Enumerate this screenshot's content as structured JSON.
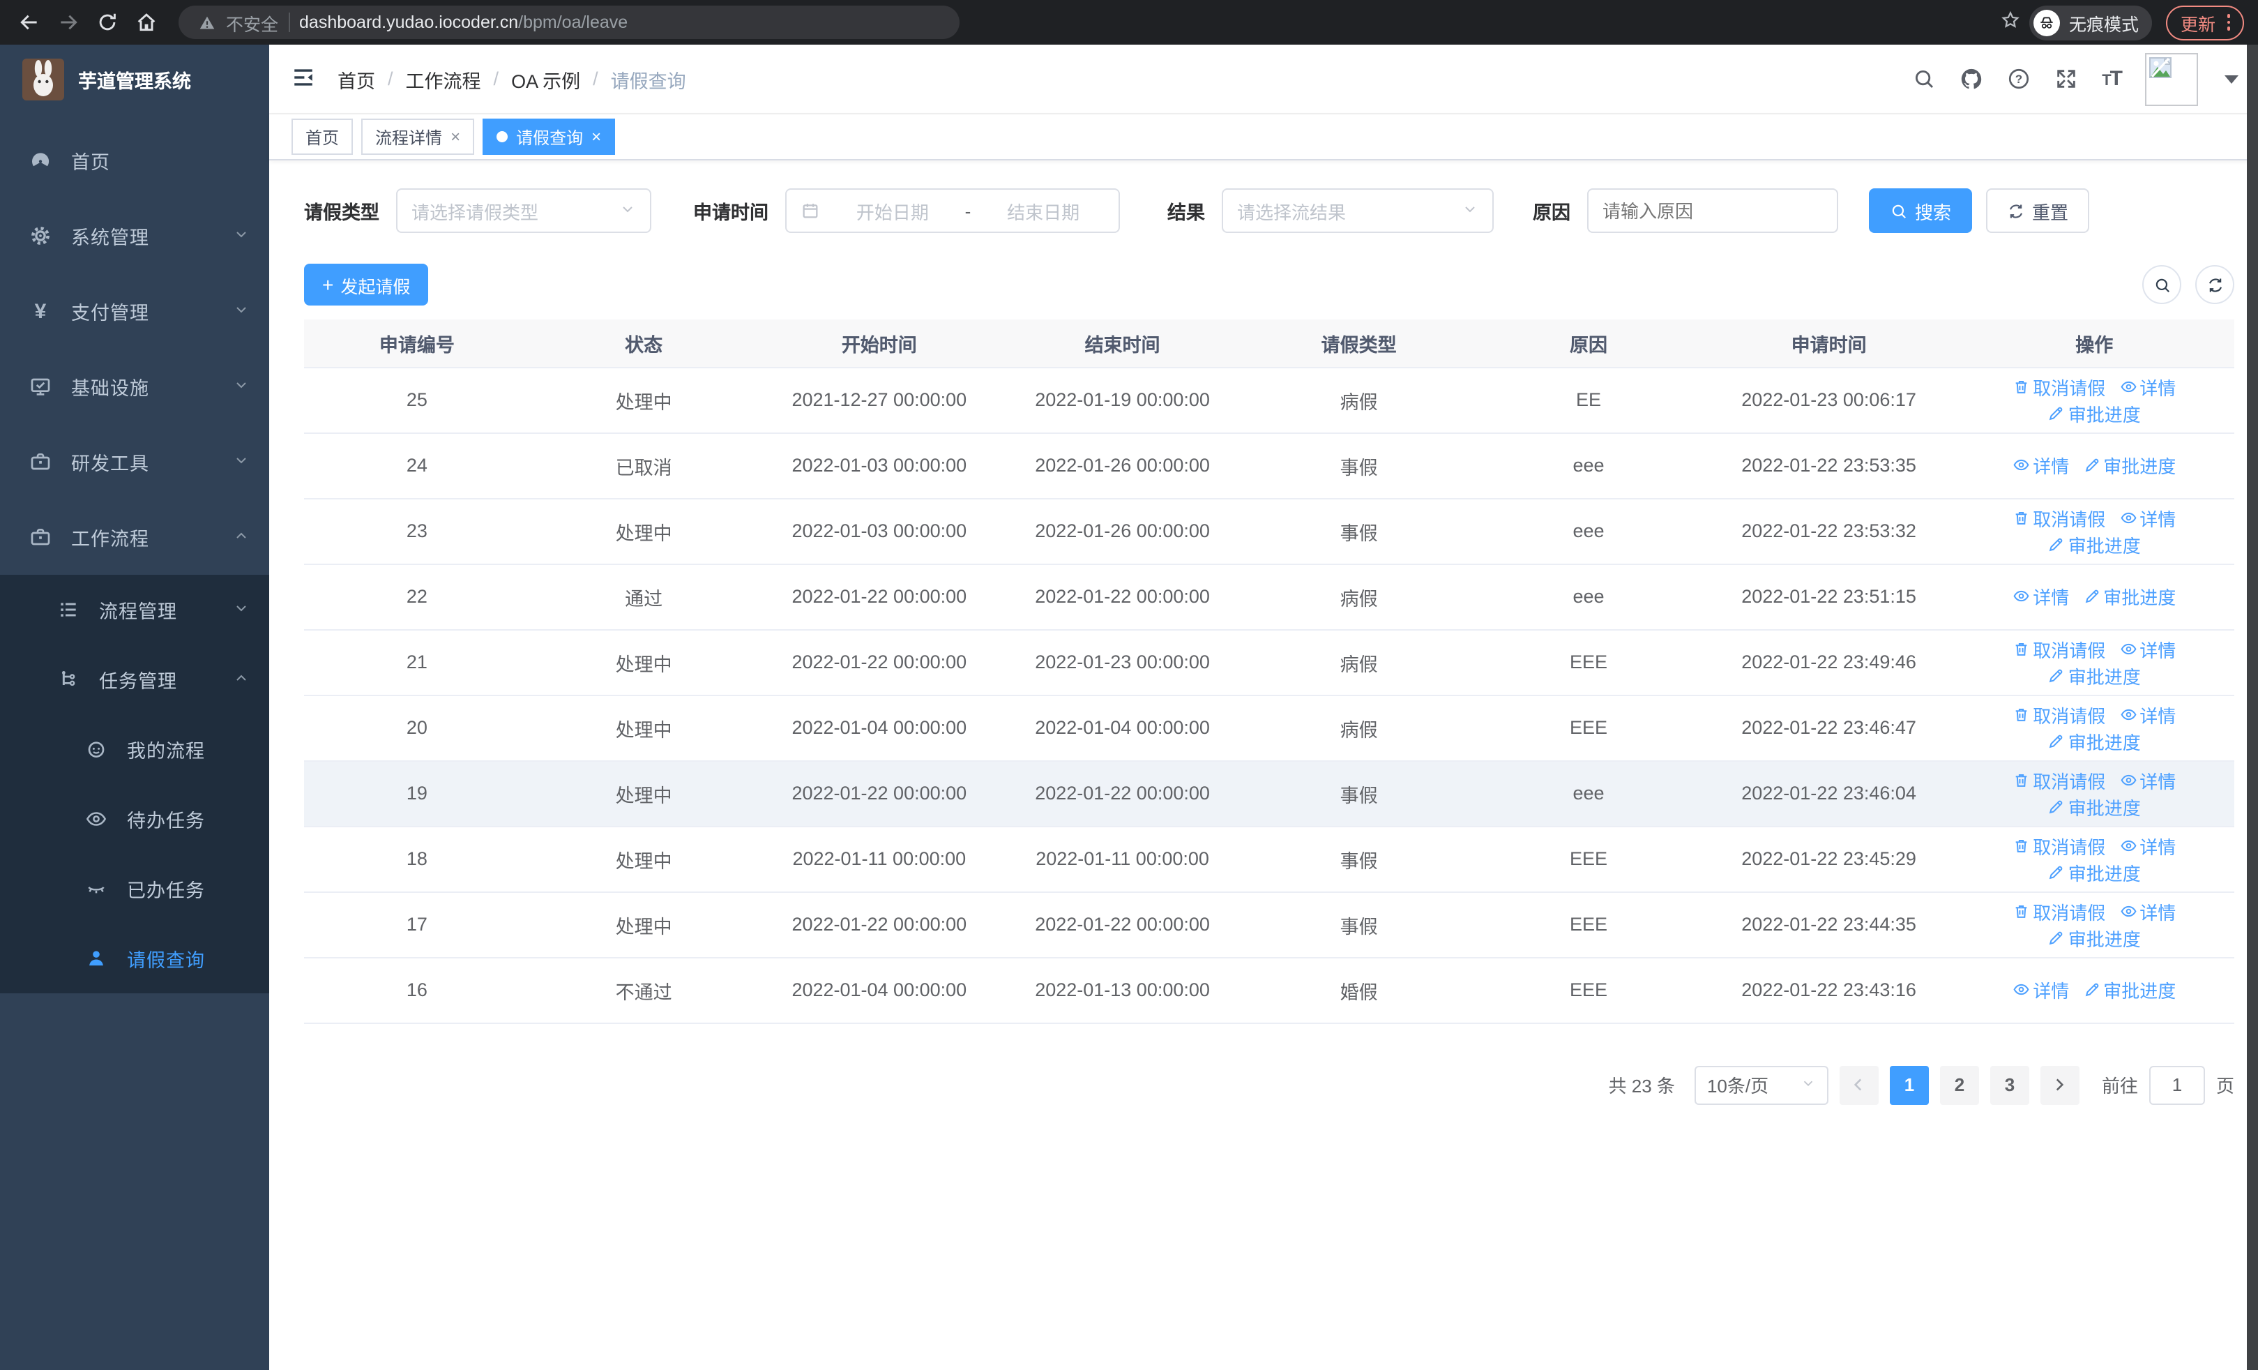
{
  "browser": {
    "security_label": "不安全",
    "url_host": "dashboard.yudao.iocoder.cn",
    "url_path": "/bpm/oa/leave",
    "incognito_label": "无痕模式",
    "update_label": "更新"
  },
  "sidebar": {
    "logo_title": "芋道管理系统",
    "items": [
      {
        "name": "home",
        "label": "首页",
        "icon": "gauge",
        "level": 0
      },
      {
        "name": "system-management",
        "label": "系统管理",
        "icon": "gear",
        "level": 0,
        "chevron": "down"
      },
      {
        "name": "payment-management",
        "label": "支付管理",
        "icon": "yen",
        "level": 0,
        "chevron": "down"
      },
      {
        "name": "infrastructure",
        "label": "基础设施",
        "icon": "monitor",
        "level": 0,
        "chevron": "down"
      },
      {
        "name": "dev-tools",
        "label": "研发工具",
        "icon": "toolbox",
        "level": 0,
        "chevron": "down"
      },
      {
        "name": "workflow",
        "label": "工作流程",
        "icon": "toolbox",
        "level": 0,
        "chevron": "up"
      },
      {
        "name": "process-management",
        "label": "流程管理",
        "icon": "list",
        "level": 1,
        "chevron": "down"
      },
      {
        "name": "task-management",
        "label": "任务管理",
        "icon": "flow",
        "level": 1,
        "chevron": "up"
      },
      {
        "name": "my-process",
        "label": "我的流程",
        "icon": "face",
        "level": 2
      },
      {
        "name": "todo-tasks",
        "label": "待办任务",
        "icon": "eye",
        "level": 2
      },
      {
        "name": "done-tasks",
        "label": "已办任务",
        "icon": "eye-off",
        "level": 2
      },
      {
        "name": "leave-query",
        "label": "请假查询",
        "icon": "person",
        "level": 2,
        "active": true
      }
    ]
  },
  "navbar": {
    "breadcrumb": [
      "首页",
      "工作流程",
      "OA 示例",
      "请假查询"
    ]
  },
  "tabs": [
    {
      "name": "home",
      "label": "首页"
    },
    {
      "name": "process-detail",
      "label": "流程详情",
      "closable": true
    },
    {
      "name": "leave-query",
      "label": "请假查询",
      "closable": true,
      "active": true
    }
  ],
  "filters": {
    "type_label": "请假类型",
    "type_placeholder": "请选择请假类型",
    "time_label": "申请时间",
    "start_placeholder": "开始日期",
    "range_separator": "-",
    "end_placeholder": "结束日期",
    "result_label": "结果",
    "result_placeholder": "请选择流结果",
    "reason_label": "原因",
    "reason_placeholder": "请输入原因",
    "search_label": "搜索",
    "reset_label": "重置"
  },
  "toolbar": {
    "create_label": "发起请假"
  },
  "table": {
    "headers": [
      "申请编号",
      "状态",
      "开始时间",
      "结束时间",
      "请假类型",
      "原因",
      "申请时间",
      "操作"
    ],
    "op_labels": {
      "cancel": "取消请假",
      "detail": "详情",
      "progress": "审批进度"
    },
    "rows": [
      {
        "id": "25",
        "status": "处理中",
        "start": "2021-12-27 00:00:00",
        "end": "2022-01-19 00:00:00",
        "type": "病假",
        "reason": "EE",
        "applied": "2022-01-23 00:06:17",
        "ops": [
          "cancel",
          "detail",
          "progress"
        ]
      },
      {
        "id": "24",
        "status": "已取消",
        "start": "2022-01-03 00:00:00",
        "end": "2022-01-26 00:00:00",
        "type": "事假",
        "reason": "eee",
        "applied": "2022-01-22 23:53:35",
        "ops": [
          "detail",
          "progress"
        ]
      },
      {
        "id": "23",
        "status": "处理中",
        "start": "2022-01-03 00:00:00",
        "end": "2022-01-26 00:00:00",
        "type": "事假",
        "reason": "eee",
        "applied": "2022-01-22 23:53:32",
        "ops": [
          "cancel",
          "detail",
          "progress"
        ]
      },
      {
        "id": "22",
        "status": "通过",
        "start": "2022-01-22 00:00:00",
        "end": "2022-01-22 00:00:00",
        "type": "病假",
        "reason": "eee",
        "applied": "2022-01-22 23:51:15",
        "ops": [
          "detail",
          "progress"
        ]
      },
      {
        "id": "21",
        "status": "处理中",
        "start": "2022-01-22 00:00:00",
        "end": "2022-01-23 00:00:00",
        "type": "病假",
        "reason": "EEE",
        "applied": "2022-01-22 23:49:46",
        "ops": [
          "cancel",
          "detail",
          "progress"
        ]
      },
      {
        "id": "20",
        "status": "处理中",
        "start": "2022-01-04 00:00:00",
        "end": "2022-01-04 00:00:00",
        "type": "病假",
        "reason": "EEE",
        "applied": "2022-01-22 23:46:47",
        "ops": [
          "cancel",
          "detail",
          "progress"
        ]
      },
      {
        "id": "19",
        "status": "处理中",
        "start": "2022-01-22 00:00:00",
        "end": "2022-01-22 00:00:00",
        "type": "事假",
        "reason": "eee",
        "applied": "2022-01-22 23:46:04",
        "ops": [
          "cancel",
          "detail",
          "progress"
        ],
        "highlighted": true
      },
      {
        "id": "18",
        "status": "处理中",
        "start": "2022-01-11 00:00:00",
        "end": "2022-01-11 00:00:00",
        "type": "事假",
        "reason": "EEE",
        "applied": "2022-01-22 23:45:29",
        "ops": [
          "cancel",
          "detail",
          "progress"
        ]
      },
      {
        "id": "17",
        "status": "处理中",
        "start": "2022-01-22 00:00:00",
        "end": "2022-01-22 00:00:00",
        "type": "事假",
        "reason": "EEE",
        "applied": "2022-01-22 23:44:35",
        "ops": [
          "cancel",
          "detail",
          "progress"
        ]
      },
      {
        "id": "16",
        "status": "不通过",
        "start": "2022-01-04 00:00:00",
        "end": "2022-01-13 00:00:00",
        "type": "婚假",
        "reason": "EEE",
        "applied": "2022-01-22 23:43:16",
        "ops": [
          "detail",
          "progress"
        ]
      }
    ]
  },
  "pagination": {
    "total": "共 23 条",
    "per_page": "10条/页",
    "pages": [
      "1",
      "2",
      "3"
    ],
    "current": "1",
    "goto_label": "前往",
    "goto_value": "1",
    "unit": "页"
  },
  "colors": {
    "primary": "#409eff",
    "sidebar_bg": "#304156",
    "submenu_bg": "#1f2d3d",
    "link": "#4da0ff",
    "update_accent": "#f28b82"
  }
}
